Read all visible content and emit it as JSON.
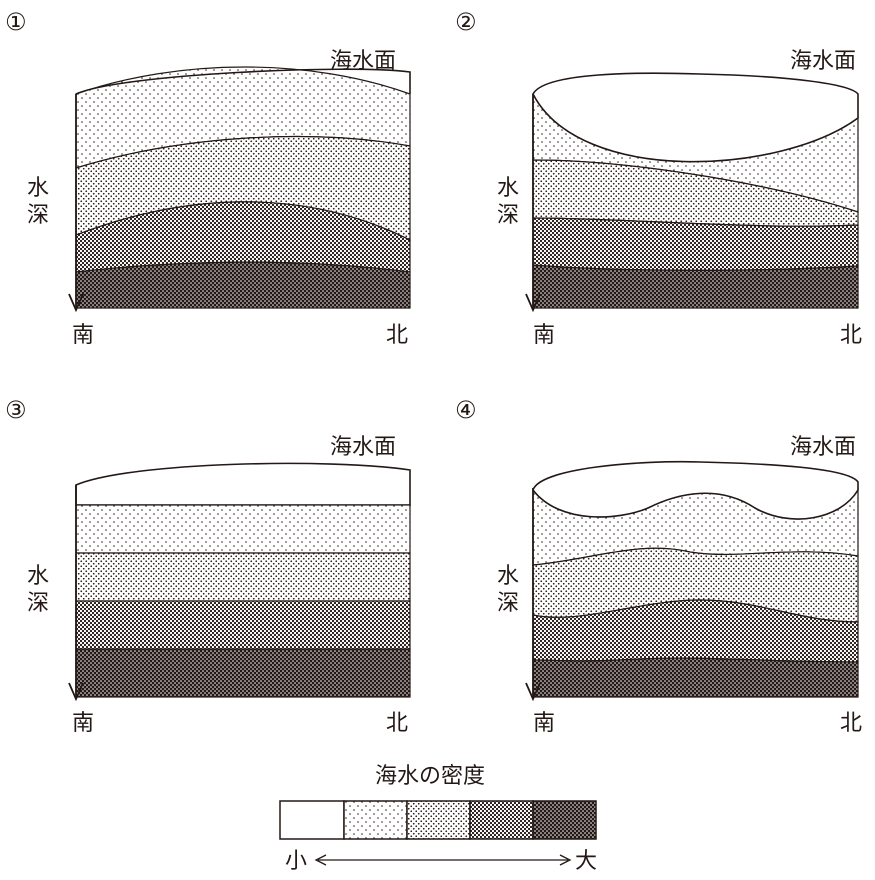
{
  "panels": [
    {
      "number": "①",
      "surface_label": "海水面",
      "depth_label": [
        "水",
        "深"
      ],
      "left_label": "南",
      "right_label": "北",
      "profile": "dome"
    },
    {
      "number": "②",
      "surface_label": "海水面",
      "depth_label": [
        "水",
        "深"
      ],
      "left_label": "南",
      "right_label": "北",
      "profile": "bowl"
    },
    {
      "number": "③",
      "surface_label": "海水面",
      "depth_label": [
        "水",
        "深"
      ],
      "left_label": "南",
      "right_label": "北",
      "profile": "flat"
    },
    {
      "number": "④",
      "surface_label": "海水面",
      "depth_label": [
        "水",
        "深"
      ],
      "left_label": "南",
      "right_label": "北",
      "profile": "wavy"
    }
  ],
  "legend": {
    "title": "海水の密度",
    "small_label": "小",
    "large_label": "大",
    "levels": 5
  },
  "colors": {
    "ink": "#231815",
    "background": "#ffffff"
  }
}
